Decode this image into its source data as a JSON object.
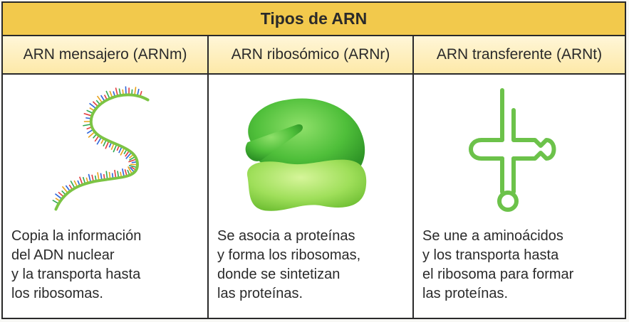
{
  "table": {
    "title": "Tipos de ARN",
    "columns": [
      {
        "header": "ARN mensajero (ARNm)",
        "illustration": "mrna-strand-icon",
        "lines": [
          "Copia la información",
          "del ADN nuclear",
          "y la transporta hasta",
          "los ribosomas."
        ]
      },
      {
        "header": "ARN ribosómico (ARNr)",
        "illustration": "ribosome-icon",
        "lines": [
          "Se asocia a proteínas",
          "y forma los ribosomas,",
          "donde se sintetizan",
          "las proteínas."
        ]
      },
      {
        "header": "ARN transferente (ARNt)",
        "illustration": "trna-cloverleaf-icon",
        "lines": [
          "Se une a aminoácidos",
          "y los transporta hasta",
          "el ribosoma para formar",
          "las proteínas."
        ]
      }
    ]
  },
  "colors": {
    "title_bg": "#f2c94c",
    "header_bg": "#fde9a8",
    "border": "#2a2a2a",
    "strand_green": "#7cc444",
    "ribosome_dark": "#4fbf3a",
    "ribosome_light": "#9fdf5a",
    "trna_green": "#6cc24a"
  }
}
